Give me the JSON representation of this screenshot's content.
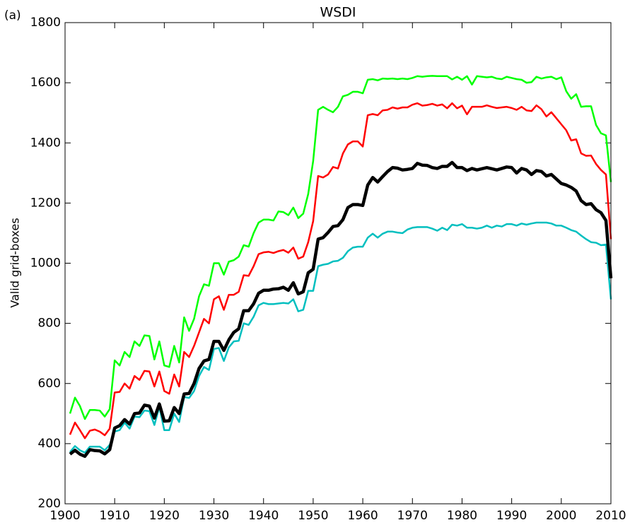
{
  "chart_data": {
    "type": "line",
    "title": "WSDI",
    "panel_label": "(a)",
    "y_label": "Valid grid-boxes",
    "x": [
      1901,
      1902,
      1903,
      1904,
      1905,
      1906,
      1907,
      1908,
      1909,
      1910,
      1911,
      1912,
      1913,
      1914,
      1915,
      1916,
      1917,
      1918,
      1919,
      1920,
      1921,
      1922,
      1923,
      1924,
      1925,
      1926,
      1927,
      1928,
      1929,
      1930,
      1931,
      1932,
      1933,
      1934,
      1935,
      1936,
      1937,
      1938,
      1939,
      1940,
      1941,
      1942,
      1943,
      1944,
      1945,
      1946,
      1947,
      1948,
      1949,
      1950,
      1951,
      1952,
      1953,
      1954,
      1955,
      1956,
      1957,
      1958,
      1959,
      1960,
      1961,
      1962,
      1963,
      1964,
      1965,
      1966,
      1967,
      1968,
      1969,
      1970,
      1971,
      1972,
      1973,
      1974,
      1975,
      1976,
      1977,
      1978,
      1979,
      1980,
      1981,
      1982,
      1983,
      1984,
      1985,
      1986,
      1987,
      1988,
      1989,
      1990,
      1991,
      1992,
      1993,
      1994,
      1995,
      1996,
      1997,
      1998,
      1999,
      2000,
      2001,
      2002,
      2003,
      2004,
      2005,
      2006,
      2007,
      2008,
      2009,
      2010
    ],
    "series": [
      {
        "color": "#00ff00",
        "linewidth": 2.5,
        "values": [
          500,
          553,
          525,
          482,
          512,
          512,
          510,
          490,
          515,
          677,
          660,
          705,
          688,
          740,
          725,
          760,
          758,
          680,
          740,
          660,
          655,
          725,
          670,
          820,
          775,
          815,
          890,
          930,
          925,
          1000,
          1000,
          962,
          1005,
          1010,
          1022,
          1060,
          1055,
          1100,
          1135,
          1145,
          1145,
          1142,
          1172,
          1170,
          1160,
          1185,
          1150,
          1165,
          1230,
          1340,
          1510,
          1520,
          1510,
          1502,
          1520,
          1555,
          1560,
          1570,
          1570,
          1565,
          1610,
          1612,
          1608,
          1614,
          1613,
          1614,
          1612,
          1614,
          1612,
          1616,
          1622,
          1620,
          1622,
          1623,
          1622,
          1622,
          1622,
          1611,
          1620,
          1610,
          1622,
          1594,
          1622,
          1620,
          1618,
          1620,
          1614,
          1612,
          1620,
          1616,
          1612,
          1610,
          1600,
          1602,
          1620,
          1614,
          1618,
          1620,
          1612,
          1618,
          1572,
          1547,
          1562,
          1520,
          1522,
          1522,
          1460,
          1432,
          1425,
          1270
        ]
      },
      {
        "color": "#ff0000",
        "linewidth": 2.5,
        "values": [
          430,
          470,
          445,
          418,
          443,
          447,
          440,
          428,
          450,
          570,
          572,
          600,
          583,
          625,
          612,
          642,
          640,
          590,
          640,
          575,
          566,
          630,
          590,
          705,
          688,
          725,
          770,
          815,
          800,
          880,
          890,
          845,
          895,
          895,
          905,
          960,
          958,
          990,
          1030,
          1036,
          1038,
          1034,
          1040,
          1044,
          1035,
          1052,
          1015,
          1022,
          1070,
          1140,
          1290,
          1285,
          1295,
          1320,
          1315,
          1365,
          1395,
          1405,
          1405,
          1388,
          1492,
          1496,
          1492,
          1508,
          1510,
          1518,
          1514,
          1518,
          1518,
          1527,
          1532,
          1524,
          1526,
          1530,
          1524,
          1528,
          1515,
          1532,
          1515,
          1524,
          1495,
          1520,
          1520,
          1520,
          1525,
          1520,
          1516,
          1518,
          1520,
          1516,
          1510,
          1520,
          1508,
          1506,
          1525,
          1512,
          1488,
          1502,
          1482,
          1462,
          1442,
          1408,
          1412,
          1365,
          1357,
          1358,
          1330,
          1310,
          1295,
          1080
        ]
      },
      {
        "color": "#00bfbf",
        "linewidth": 2.5,
        "values": [
          372,
          392,
          378,
          370,
          390,
          390,
          390,
          378,
          396,
          440,
          445,
          470,
          450,
          490,
          488,
          510,
          508,
          462,
          522,
          445,
          445,
          500,
          472,
          555,
          552,
          575,
          625,
          655,
          645,
          715,
          718,
          675,
          720,
          740,
          742,
          800,
          795,
          822,
          860,
          868,
          864,
          864,
          866,
          868,
          866,
          880,
          840,
          845,
          908,
          908,
          990,
          995,
          998,
          1006,
          1008,
          1018,
          1040,
          1052,
          1055,
          1055,
          1085,
          1098,
          1085,
          1098,
          1105,
          1105,
          1102,
          1100,
          1112,
          1118,
          1120,
          1120,
          1120,
          1115,
          1108,
          1118,
          1110,
          1128,
          1125,
          1130,
          1118,
          1118,
          1115,
          1118,
          1125,
          1118,
          1125,
          1122,
          1130,
          1130,
          1125,
          1132,
          1128,
          1132,
          1135,
          1135,
          1135,
          1132,
          1125,
          1125,
          1118,
          1110,
          1105,
          1092,
          1080,
          1070,
          1068,
          1060,
          1062,
          880
        ]
      },
      {
        "color": "#000000",
        "linewidth": 4.5,
        "values": [
          365,
          378,
          365,
          358,
          380,
          377,
          376,
          366,
          380,
          452,
          460,
          480,
          465,
          500,
          502,
          528,
          525,
          485,
          532,
          475,
          476,
          520,
          500,
          565,
          567,
          600,
          650,
          675,
          680,
          740,
          740,
          710,
          745,
          770,
          782,
          842,
          842,
          865,
          900,
          910,
          910,
          914,
          915,
          920,
          910,
          935,
          898,
          905,
          968,
          980,
          1080,
          1085,
          1102,
          1122,
          1125,
          1145,
          1185,
          1195,
          1195,
          1192,
          1260,
          1285,
          1270,
          1288,
          1305,
          1318,
          1316,
          1310,
          1312,
          1315,
          1332,
          1326,
          1325,
          1318,
          1315,
          1322,
          1322,
          1335,
          1318,
          1318,
          1308,
          1315,
          1310,
          1314,
          1318,
          1314,
          1310,
          1315,
          1320,
          1318,
          1300,
          1315,
          1310,
          1295,
          1308,
          1305,
          1290,
          1295,
          1280,
          1265,
          1260,
          1252,
          1240,
          1208,
          1195,
          1198,
          1178,
          1168,
          1142,
          950
        ]
      }
    ],
    "xlim": [
      1900,
      2010
    ],
    "xticks": [
      1900,
      1910,
      1920,
      1930,
      1940,
      1950,
      1960,
      1970,
      1980,
      1990,
      2000,
      2010
    ],
    "ylim": [
      200,
      1800
    ],
    "yticks": [
      200,
      400,
      600,
      800,
      1000,
      1200,
      1400,
      1600,
      1800
    ]
  }
}
